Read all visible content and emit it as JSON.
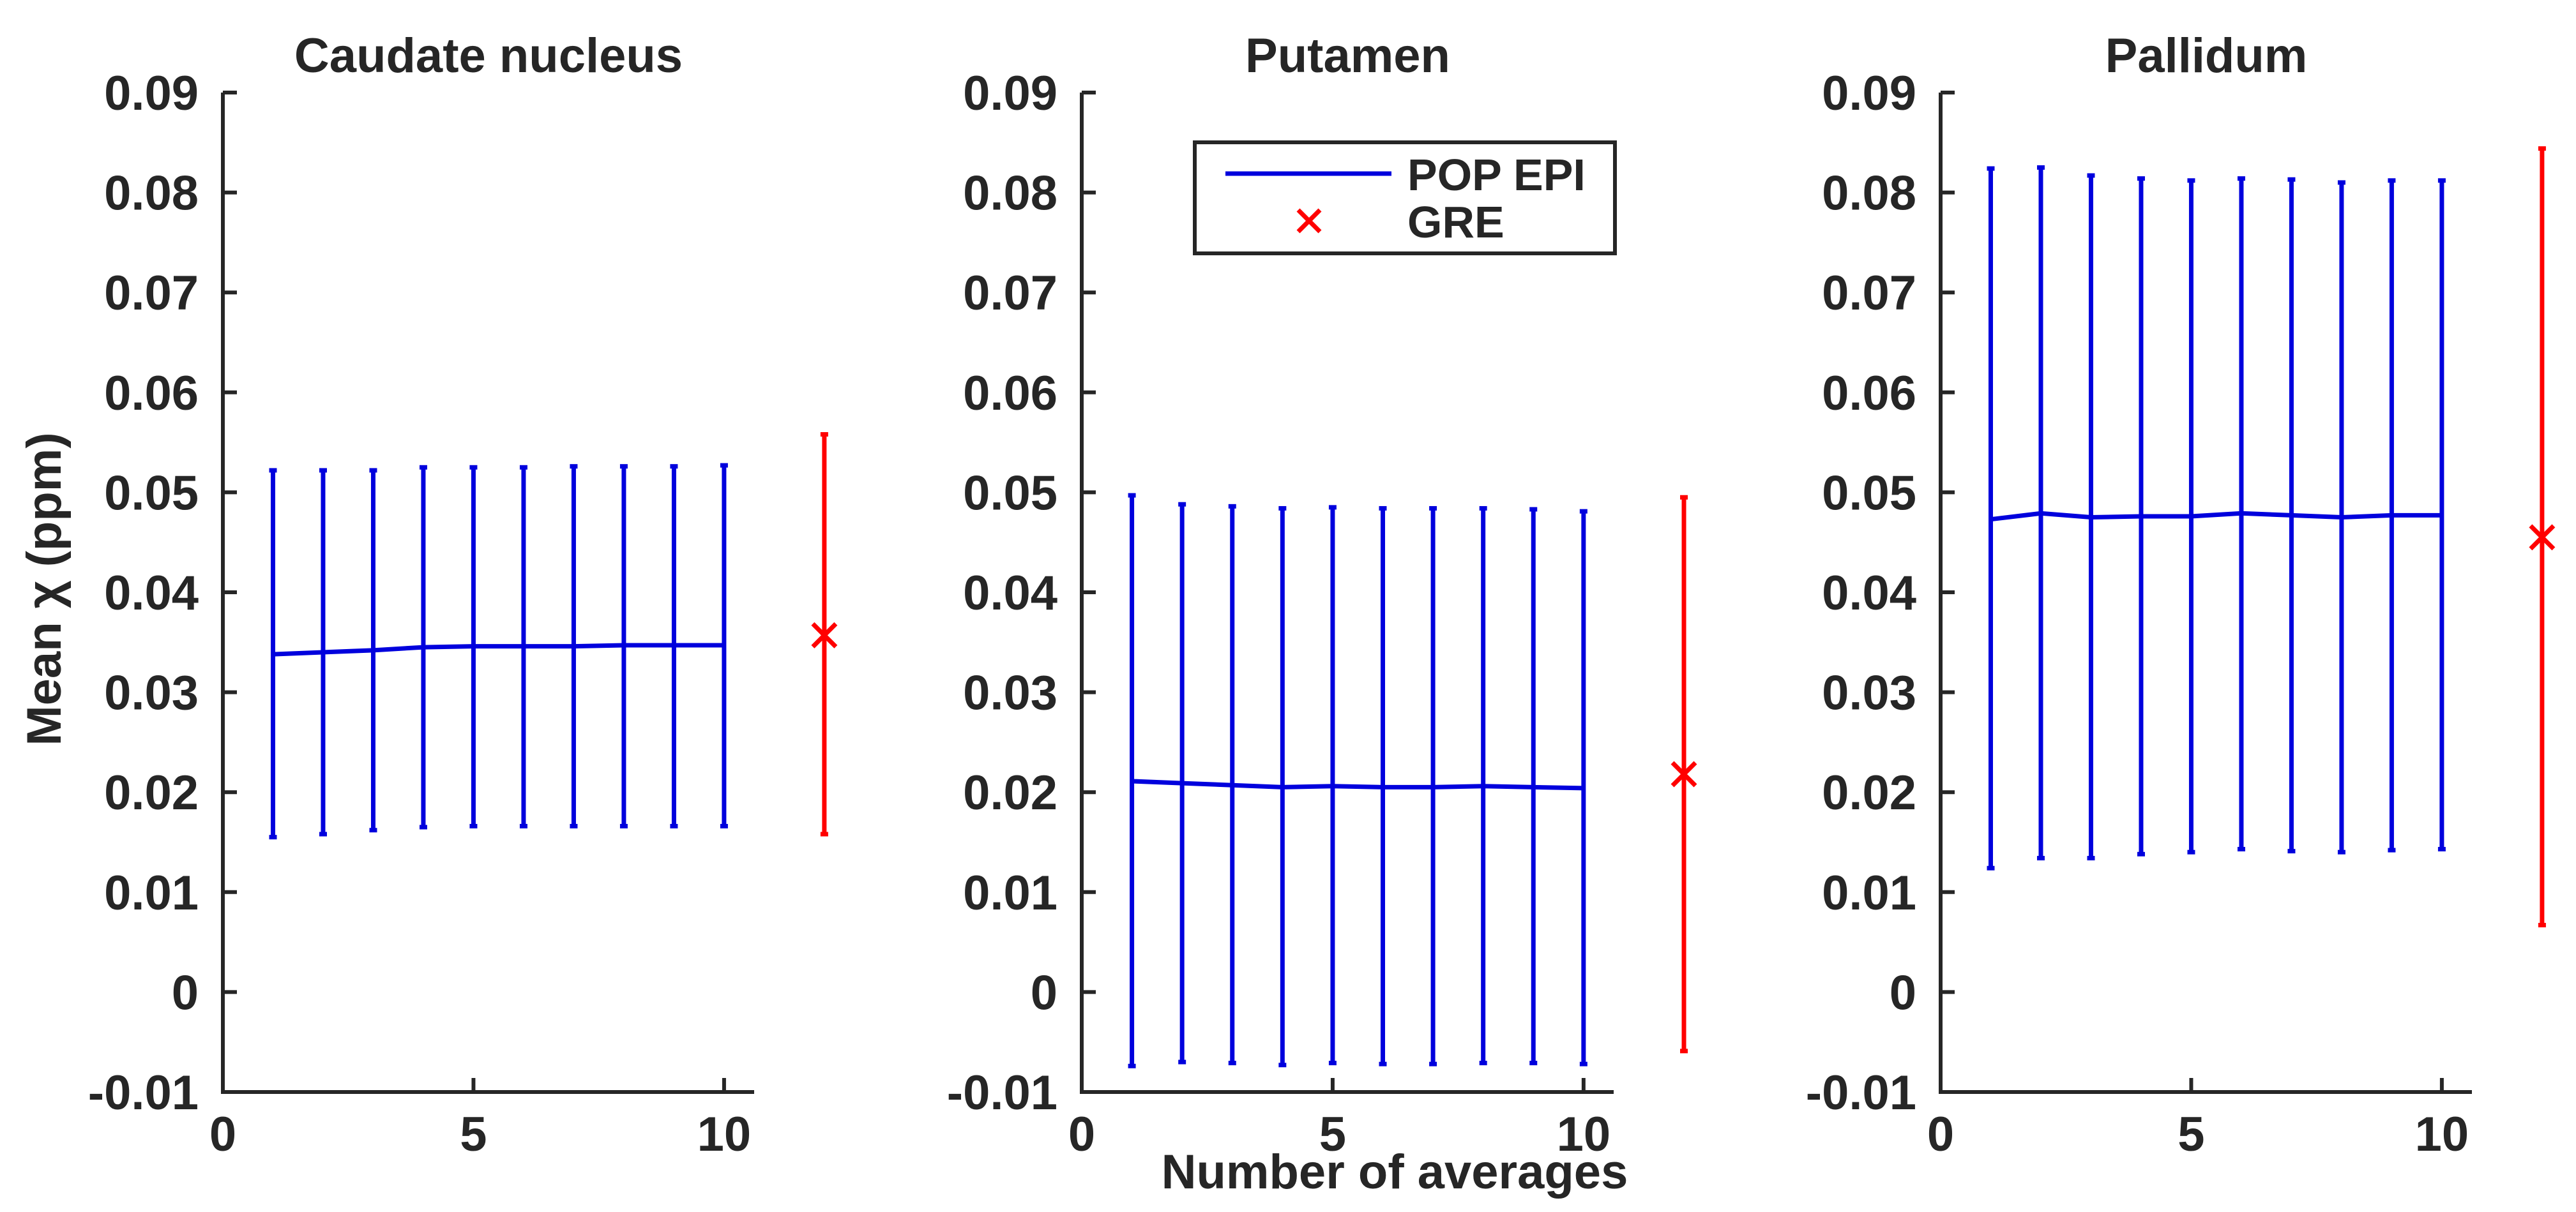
{
  "figure": {
    "ylabel": "Mean χ (ppm)",
    "xlabel": "Number of averages"
  },
  "legend": {
    "items": [
      {
        "label": "POP EPI",
        "marker": "line",
        "color": "#0000dd"
      },
      {
        "label": "GRE",
        "marker": "x",
        "color": "#ff0000"
      }
    ]
  },
  "colors": {
    "epi": "#0000dd",
    "gre": "#ff0000",
    "axis": "#262626"
  },
  "chart_data": [
    {
      "type": "line",
      "title": "Caudate nucleus",
      "xlim": [
        0,
        10.6
      ],
      "ylim": [
        -0.01,
        0.09
      ],
      "xticks": [
        0,
        5,
        10
      ],
      "yticks": [
        -0.01,
        0,
        0.01,
        0.02,
        0.03,
        0.04,
        0.05,
        0.06,
        0.07,
        0.08,
        0.09
      ],
      "series": [
        {
          "name": "POP EPI",
          "x": [
            1,
            2,
            3,
            4,
            5,
            6,
            7,
            8,
            9,
            10
          ],
          "y": [
            0.0338,
            0.034,
            0.0342,
            0.0345,
            0.0346,
            0.0346,
            0.0346,
            0.0347,
            0.0347,
            0.0347
          ],
          "err_low": [
            0.0155,
            0.0158,
            0.0162,
            0.0165,
            0.0166,
            0.0166,
            0.0166,
            0.0166,
            0.0166,
            0.0166
          ],
          "err_high": [
            0.0522,
            0.0522,
            0.0522,
            0.0525,
            0.0525,
            0.0525,
            0.0526,
            0.0526,
            0.0526,
            0.0527
          ]
        },
        {
          "name": "GRE",
          "x": [
            12
          ],
          "y": [
            0.0357
          ],
          "err_low": [
            0.0158
          ],
          "err_high": [
            0.0558
          ]
        }
      ]
    },
    {
      "type": "line",
      "title": "Putamen",
      "xlim": [
        0,
        10.6
      ],
      "ylim": [
        -0.01,
        0.09
      ],
      "xticks": [
        0,
        5,
        10
      ],
      "yticks": [
        -0.01,
        0,
        0.01,
        0.02,
        0.03,
        0.04,
        0.05,
        0.06,
        0.07,
        0.08,
        0.09
      ],
      "series": [
        {
          "name": "POP EPI",
          "x": [
            1,
            2,
            3,
            4,
            5,
            6,
            7,
            8,
            9,
            10
          ],
          "y": [
            0.0211,
            0.0209,
            0.0207,
            0.0205,
            0.0206,
            0.0205,
            0.0205,
            0.0206,
            0.0205,
            0.0204
          ],
          "err_low": [
            -0.0074,
            -0.007,
            -0.0071,
            -0.0073,
            -0.0071,
            -0.0072,
            -0.0072,
            -0.0071,
            -0.0071,
            -0.0072
          ],
          "err_high": [
            0.0497,
            0.0488,
            0.0486,
            0.0484,
            0.0485,
            0.0484,
            0.0484,
            0.0484,
            0.0483,
            0.0481
          ]
        },
        {
          "name": "GRE",
          "x": [
            12
          ],
          "y": [
            0.0218
          ],
          "err_low": [
            -0.0059
          ],
          "err_high": [
            0.0495
          ]
        }
      ]
    },
    {
      "type": "line",
      "title": "Pallidum",
      "xlim": [
        0,
        10.6
      ],
      "ylim": [
        -0.01,
        0.09
      ],
      "xticks": [
        0,
        5,
        10
      ],
      "yticks": [
        -0.01,
        0,
        0.01,
        0.02,
        0.03,
        0.04,
        0.05,
        0.06,
        0.07,
        0.08,
        0.09
      ],
      "series": [
        {
          "name": "POP EPI",
          "x": [
            1,
            2,
            3,
            4,
            5,
            6,
            7,
            8,
            9,
            10
          ],
          "y": [
            0.0473,
            0.0479,
            0.0475,
            0.0476,
            0.0476,
            0.0479,
            0.0477,
            0.0475,
            0.0477,
            0.0477
          ],
          "err_low": [
            0.0124,
            0.0134,
            0.0134,
            0.0138,
            0.014,
            0.0143,
            0.0141,
            0.014,
            0.0142,
            0.0143
          ],
          "err_high": [
            0.0824,
            0.0825,
            0.0817,
            0.0814,
            0.0812,
            0.0814,
            0.0813,
            0.081,
            0.0812,
            0.0812
          ]
        },
        {
          "name": "GRE",
          "x": [
            12
          ],
          "y": [
            0.0455
          ],
          "err_low": [
            0.0067
          ],
          "err_high": [
            0.0844
          ]
        }
      ]
    }
  ]
}
